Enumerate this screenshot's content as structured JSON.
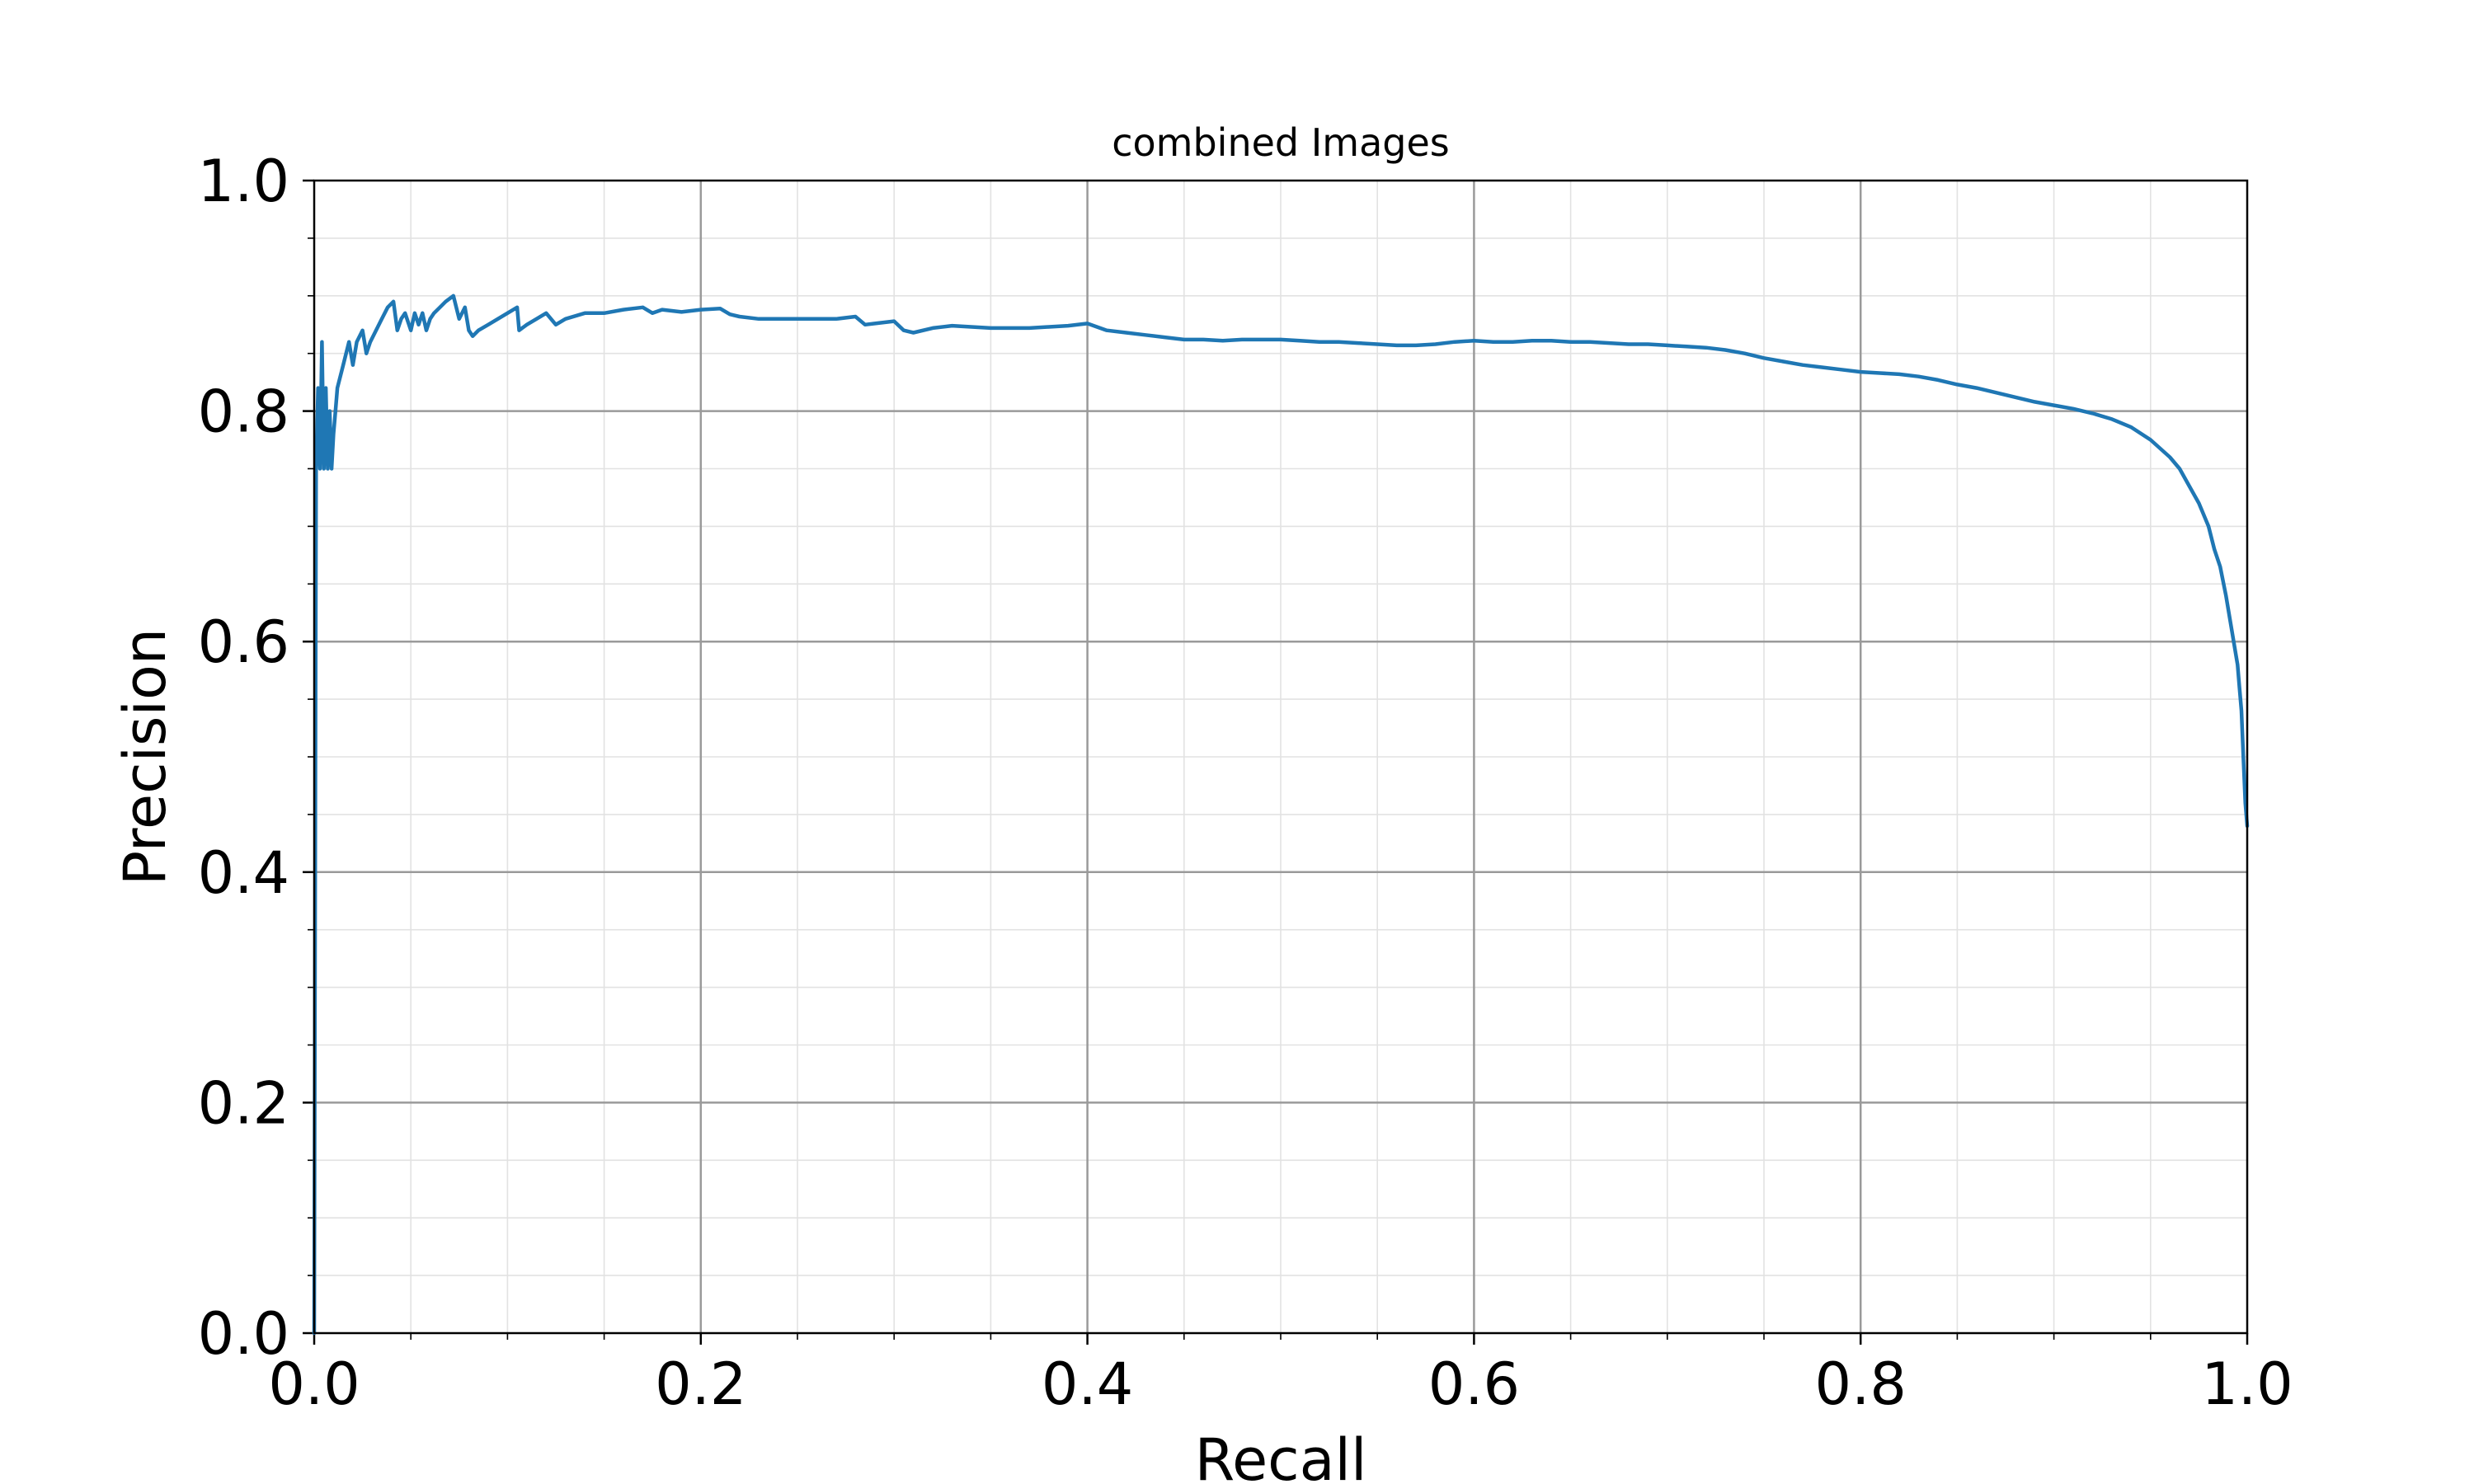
{
  "chart_data": {
    "type": "line",
    "title": "combined Images",
    "xlabel": "Recall",
    "ylabel": "Precision",
    "xlim": [
      0.0,
      1.0
    ],
    "ylim": [
      0.0,
      1.0
    ],
    "xticks": [
      "0.0",
      "0.2",
      "0.4",
      "0.6",
      "0.8",
      "1.0"
    ],
    "yticks": [
      "0.0",
      "0.2",
      "0.4",
      "0.6",
      "0.8",
      "1.0"
    ],
    "grid": "major and minor",
    "legend": "none",
    "series": [
      {
        "color": "#1f77b4",
        "x": [
          0.0,
          0.001,
          0.002,
          0.003,
          0.004,
          0.005,
          0.006,
          0.007,
          0.008,
          0.009,
          0.01,
          0.011,
          0.012,
          0.015,
          0.018,
          0.02,
          0.022,
          0.025,
          0.027,
          0.029,
          0.032,
          0.035,
          0.038,
          0.041,
          0.043,
          0.045,
          0.047,
          0.05,
          0.052,
          0.054,
          0.056,
          0.058,
          0.06,
          0.062,
          0.065,
          0.068,
          0.072,
          0.075,
          0.078,
          0.08,
          0.082,
          0.085,
          0.09,
          0.095,
          0.1,
          0.105,
          0.106,
          0.11,
          0.115,
          0.12,
          0.125,
          0.13,
          0.14,
          0.15,
          0.16,
          0.17,
          0.175,
          0.18,
          0.19,
          0.2,
          0.21,
          0.215,
          0.22,
          0.23,
          0.24,
          0.25,
          0.26,
          0.27,
          0.28,
          0.285,
          0.29,
          0.3,
          0.305,
          0.31,
          0.32,
          0.33,
          0.34,
          0.35,
          0.36,
          0.37,
          0.38,
          0.39,
          0.4,
          0.41,
          0.42,
          0.43,
          0.44,
          0.45,
          0.46,
          0.47,
          0.48,
          0.49,
          0.5,
          0.51,
          0.52,
          0.53,
          0.54,
          0.55,
          0.56,
          0.57,
          0.58,
          0.59,
          0.6,
          0.61,
          0.62,
          0.63,
          0.64,
          0.65,
          0.66,
          0.67,
          0.68,
          0.69,
          0.7,
          0.71,
          0.72,
          0.73,
          0.74,
          0.75,
          0.76,
          0.77,
          0.78,
          0.79,
          0.8,
          0.81,
          0.82,
          0.83,
          0.84,
          0.85,
          0.86,
          0.87,
          0.88,
          0.89,
          0.9,
          0.91,
          0.92,
          0.93,
          0.94,
          0.95,
          0.96,
          0.965,
          0.97,
          0.975,
          0.98,
          0.983,
          0.986,
          0.989,
          0.991,
          0.993,
          0.995,
          0.996,
          0.997,
          0.998,
          0.999,
          1.0
        ],
        "y": [
          0.0,
          0.75,
          0.82,
          0.75,
          0.86,
          0.75,
          0.82,
          0.75,
          0.8,
          0.75,
          0.78,
          0.8,
          0.82,
          0.84,
          0.86,
          0.84,
          0.86,
          0.87,
          0.85,
          0.86,
          0.87,
          0.88,
          0.89,
          0.895,
          0.87,
          0.88,
          0.885,
          0.87,
          0.885,
          0.875,
          0.885,
          0.87,
          0.88,
          0.885,
          0.89,
          0.895,
          0.9,
          0.88,
          0.89,
          0.87,
          0.865,
          0.87,
          0.875,
          0.88,
          0.885,
          0.89,
          0.87,
          0.875,
          0.88,
          0.885,
          0.875,
          0.88,
          0.885,
          0.885,
          0.888,
          0.89,
          0.885,
          0.888,
          0.886,
          0.888,
          0.889,
          0.884,
          0.882,
          0.88,
          0.88,
          0.88,
          0.88,
          0.88,
          0.882,
          0.875,
          0.876,
          0.878,
          0.87,
          0.868,
          0.872,
          0.874,
          0.873,
          0.872,
          0.872,
          0.872,
          0.873,
          0.874,
          0.876,
          0.87,
          0.868,
          0.866,
          0.864,
          0.862,
          0.862,
          0.861,
          0.862,
          0.862,
          0.862,
          0.861,
          0.86,
          0.86,
          0.859,
          0.858,
          0.857,
          0.857,
          0.858,
          0.86,
          0.861,
          0.86,
          0.86,
          0.861,
          0.861,
          0.86,
          0.86,
          0.859,
          0.858,
          0.858,
          0.857,
          0.856,
          0.855,
          0.853,
          0.85,
          0.846,
          0.843,
          0.84,
          0.838,
          0.836,
          0.834,
          0.833,
          0.832,
          0.83,
          0.827,
          0.823,
          0.82,
          0.816,
          0.812,
          0.808,
          0.805,
          0.802,
          0.798,
          0.793,
          0.786,
          0.775,
          0.76,
          0.75,
          0.735,
          0.72,
          0.7,
          0.68,
          0.665,
          0.64,
          0.62,
          0.6,
          0.58,
          0.56,
          0.54,
          0.5,
          0.46,
          0.44
        ]
      }
    ]
  }
}
